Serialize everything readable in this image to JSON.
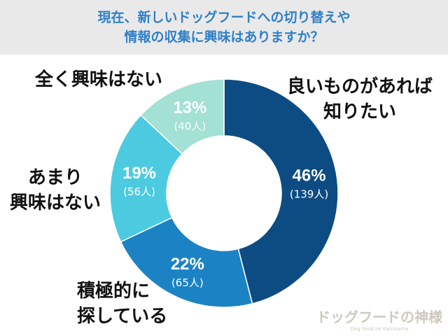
{
  "title": {
    "line1": "現在、新しいドッグフードへの切り替えや",
    "line2": "情報の収集に興味はありますか？"
  },
  "chart_data": {
    "type": "pie",
    "donut": true,
    "title": "現在、新しいドッグフードへの切り替えや情報の収集に興味はありますか？",
    "slices": [
      {
        "label": "良いものがあれば知りたい",
        "label_lines": [
          "良いものがあれば",
          "知りたい"
        ],
        "percent": 46,
        "percent_text": "46%",
        "count_text": "(139人)",
        "color": "#0c4c82"
      },
      {
        "label": "積極的に探している",
        "label_lines": [
          "積極的に",
          "探している"
        ],
        "percent": 22,
        "percent_text": "22%",
        "count_text": "(65人)",
        "color": "#1b83c4"
      },
      {
        "label": "あまり興味はない",
        "label_lines": [
          "あまり",
          "興味はない"
        ],
        "percent": 19,
        "percent_text": "19%",
        "count_text": "(56人)",
        "color": "#4ccbe0"
      },
      {
        "label": "全く興味はない",
        "label_lines": [
          "全く興味はない"
        ],
        "percent": 13,
        "percent_text": "13%",
        "count_text": "(40人)",
        "color": "#a2e1d3"
      }
    ]
  },
  "logo": {
    "main": "ドッグフードの神様",
    "sub": "Dog Food no Kamisama"
  }
}
